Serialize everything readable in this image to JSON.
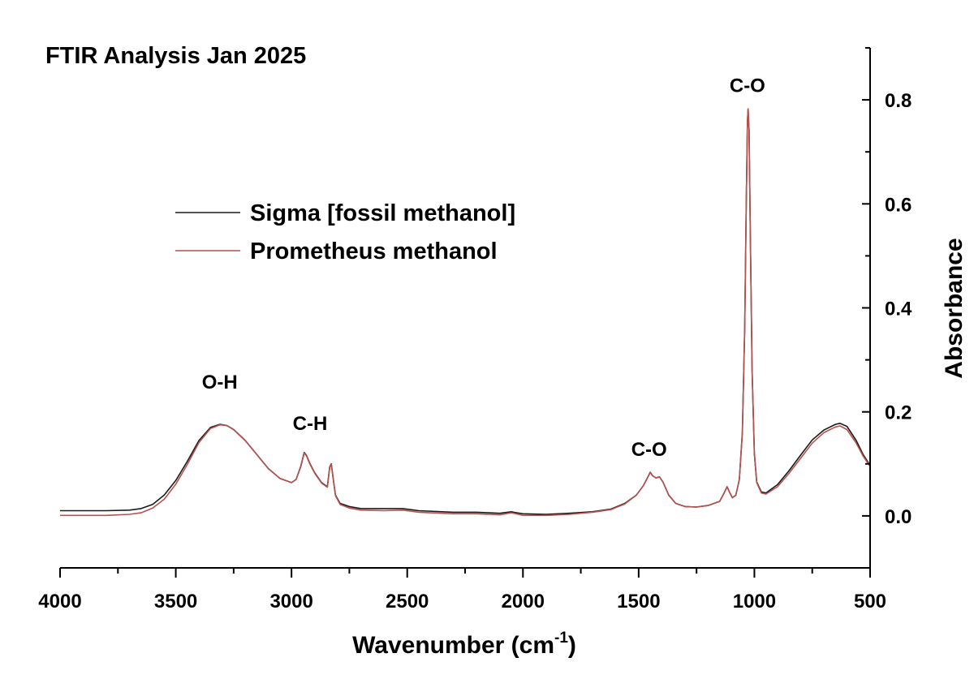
{
  "chart_data": {
    "type": "line",
    "title": "FTIR Analysis Jan 2025",
    "xlabel": "Wavenumber (cm",
    "xlabel_sup": "-1",
    "xlabel_close": ")",
    "ylabel": "Absorbance",
    "xlim": [
      4000,
      500
    ],
    "ylim": [
      -0.1,
      0.9
    ],
    "x_reversed": true,
    "y_axis_side": "right",
    "grid": false,
    "legend_position": "upper-left",
    "x_ticks": [
      {
        "value": 4000,
        "label": "4000"
      },
      {
        "value": 3500,
        "label": "3500"
      },
      {
        "value": 3000,
        "label": "3000"
      },
      {
        "value": 2500,
        "label": "2500"
      },
      {
        "value": 2000,
        "label": "2000"
      },
      {
        "value": 1500,
        "label": "1500"
      },
      {
        "value": 1000,
        "label": "1000"
      },
      {
        "value": 500,
        "label": "500"
      }
    ],
    "y_ticks": [
      {
        "value": 0.0,
        "label": "0.0"
      },
      {
        "value": 0.2,
        "label": "0.2"
      },
      {
        "value": 0.4,
        "label": "0.4"
      },
      {
        "value": 0.6,
        "label": "0.6"
      },
      {
        "value": 0.8,
        "label": "0.8"
      }
    ],
    "series": [
      {
        "name": "Sigma [fossil methanol]",
        "color": "#1a1a1a",
        "points": [
          [
            4000,
            0.01
          ],
          [
            3800,
            0.01
          ],
          [
            3700,
            0.011
          ],
          [
            3650,
            0.014
          ],
          [
            3600,
            0.022
          ],
          [
            3550,
            0.04
          ],
          [
            3500,
            0.068
          ],
          [
            3450,
            0.105
          ],
          [
            3400,
            0.145
          ],
          [
            3350,
            0.17
          ],
          [
            3310,
            0.176
          ],
          [
            3280,
            0.174
          ],
          [
            3250,
            0.166
          ],
          [
            3200,
            0.145
          ],
          [
            3150,
            0.118
          ],
          [
            3100,
            0.091
          ],
          [
            3050,
            0.072
          ],
          [
            3000,
            0.064
          ],
          [
            2980,
            0.07
          ],
          [
            2960,
            0.095
          ],
          [
            2945,
            0.122
          ],
          [
            2935,
            0.116
          ],
          [
            2920,
            0.1
          ],
          [
            2900,
            0.083
          ],
          [
            2870,
            0.064
          ],
          [
            2845,
            0.056
          ],
          [
            2835,
            0.094
          ],
          [
            2828,
            0.1
          ],
          [
            2820,
            0.072
          ],
          [
            2810,
            0.04
          ],
          [
            2790,
            0.024
          ],
          [
            2750,
            0.018
          ],
          [
            2700,
            0.014
          ],
          [
            2600,
            0.014
          ],
          [
            2520,
            0.014
          ],
          [
            2450,
            0.01
          ],
          [
            2300,
            0.007
          ],
          [
            2200,
            0.007
          ],
          [
            2100,
            0.005
          ],
          [
            2050,
            0.008
          ],
          [
            2040,
            0.007
          ],
          [
            2000,
            0.004
          ],
          [
            1900,
            0.003
          ],
          [
            1800,
            0.005
          ],
          [
            1700,
            0.008
          ],
          [
            1620,
            0.013
          ],
          [
            1560,
            0.024
          ],
          [
            1510,
            0.04
          ],
          [
            1480,
            0.058
          ],
          [
            1460,
            0.075
          ],
          [
            1450,
            0.084
          ],
          [
            1440,
            0.077
          ],
          [
            1425,
            0.073
          ],
          [
            1410,
            0.075
          ],
          [
            1395,
            0.065
          ],
          [
            1370,
            0.04
          ],
          [
            1340,
            0.024
          ],
          [
            1300,
            0.018
          ],
          [
            1250,
            0.017
          ],
          [
            1200,
            0.02
          ],
          [
            1150,
            0.028
          ],
          [
            1130,
            0.045
          ],
          [
            1118,
            0.056
          ],
          [
            1108,
            0.046
          ],
          [
            1095,
            0.035
          ],
          [
            1080,
            0.04
          ],
          [
            1065,
            0.07
          ],
          [
            1052,
            0.16
          ],
          [
            1042,
            0.36
          ],
          [
            1035,
            0.6
          ],
          [
            1030,
            0.76
          ],
          [
            1027,
            0.782
          ],
          [
            1023,
            0.74
          ],
          [
            1017,
            0.52
          ],
          [
            1010,
            0.28
          ],
          [
            1000,
            0.12
          ],
          [
            990,
            0.065
          ],
          [
            970,
            0.046
          ],
          [
            950,
            0.044
          ],
          [
            900,
            0.06
          ],
          [
            850,
            0.087
          ],
          [
            800,
            0.117
          ],
          [
            750,
            0.146
          ],
          [
            700,
            0.165
          ],
          [
            650,
            0.176
          ],
          [
            630,
            0.178
          ],
          [
            600,
            0.172
          ],
          [
            560,
            0.145
          ],
          [
            530,
            0.118
          ],
          [
            500,
            0.097
          ]
        ]
      },
      {
        "name": "Prometheus methanol",
        "color": "#b5524f",
        "points": [
          [
            4000,
            0.001
          ],
          [
            3800,
            0.001
          ],
          [
            3700,
            0.003
          ],
          [
            3650,
            0.006
          ],
          [
            3600,
            0.015
          ],
          [
            3550,
            0.032
          ],
          [
            3500,
            0.061
          ],
          [
            3450,
            0.099
          ],
          [
            3400,
            0.141
          ],
          [
            3350,
            0.168
          ],
          [
            3310,
            0.175
          ],
          [
            3280,
            0.174
          ],
          [
            3250,
            0.166
          ],
          [
            3200,
            0.145
          ],
          [
            3150,
            0.118
          ],
          [
            3100,
            0.091
          ],
          [
            3050,
            0.072
          ],
          [
            3000,
            0.064
          ],
          [
            2980,
            0.07
          ],
          [
            2960,
            0.094
          ],
          [
            2945,
            0.121
          ],
          [
            2935,
            0.115
          ],
          [
            2920,
            0.099
          ],
          [
            2900,
            0.082
          ],
          [
            2870,
            0.063
          ],
          [
            2845,
            0.055
          ],
          [
            2835,
            0.093
          ],
          [
            2828,
            0.099
          ],
          [
            2820,
            0.071
          ],
          [
            2810,
            0.039
          ],
          [
            2790,
            0.022
          ],
          [
            2750,
            0.015
          ],
          [
            2700,
            0.011
          ],
          [
            2600,
            0.01
          ],
          [
            2520,
            0.011
          ],
          [
            2450,
            0.007
          ],
          [
            2300,
            0.004
          ],
          [
            2200,
            0.004
          ],
          [
            2100,
            0.002
          ],
          [
            2050,
            0.006
          ],
          [
            2040,
            0.005
          ],
          [
            2000,
            0.001
          ],
          [
            1900,
            0.001
          ],
          [
            1800,
            0.003
          ],
          [
            1700,
            0.007
          ],
          [
            1620,
            0.012
          ],
          [
            1560,
            0.023
          ],
          [
            1510,
            0.04
          ],
          [
            1480,
            0.058
          ],
          [
            1460,
            0.075
          ],
          [
            1450,
            0.084
          ],
          [
            1440,
            0.077
          ],
          [
            1425,
            0.073
          ],
          [
            1410,
            0.075
          ],
          [
            1395,
            0.065
          ],
          [
            1370,
            0.04
          ],
          [
            1340,
            0.024
          ],
          [
            1300,
            0.018
          ],
          [
            1250,
            0.017
          ],
          [
            1200,
            0.02
          ],
          [
            1150,
            0.028
          ],
          [
            1130,
            0.045
          ],
          [
            1118,
            0.056
          ],
          [
            1108,
            0.046
          ],
          [
            1095,
            0.035
          ],
          [
            1080,
            0.04
          ],
          [
            1065,
            0.07
          ],
          [
            1052,
            0.16
          ],
          [
            1042,
            0.36
          ],
          [
            1035,
            0.6
          ],
          [
            1030,
            0.76
          ],
          [
            1027,
            0.783
          ],
          [
            1023,
            0.741
          ],
          [
            1017,
            0.52
          ],
          [
            1010,
            0.28
          ],
          [
            1000,
            0.12
          ],
          [
            990,
            0.064
          ],
          [
            970,
            0.044
          ],
          [
            950,
            0.042
          ],
          [
            900,
            0.056
          ],
          [
            850,
            0.082
          ],
          [
            800,
            0.111
          ],
          [
            750,
            0.14
          ],
          [
            700,
            0.16
          ],
          [
            650,
            0.171
          ],
          [
            630,
            0.173
          ],
          [
            600,
            0.166
          ],
          [
            560,
            0.14
          ],
          [
            530,
            0.115
          ],
          [
            500,
            0.095
          ]
        ]
      }
    ],
    "annotations": [
      {
        "text": "O-H",
        "x": 3310,
        "y": 0.245
      },
      {
        "text": "C-H",
        "x": 2920,
        "y": 0.165
      },
      {
        "text": "C-O",
        "x": 1455,
        "y": 0.115
      },
      {
        "text": "C-O",
        "x": 1030,
        "y": 0.815
      }
    ]
  }
}
